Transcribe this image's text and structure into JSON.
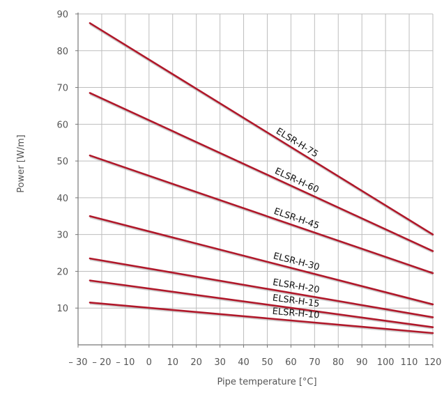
{
  "chart_data": {
    "type": "line",
    "title": "",
    "xlabel": "Pipe temperature [°C]",
    "ylabel": "Power [W/m]",
    "xlim": [
      -30,
      120
    ],
    "ylim": [
      0,
      90
    ],
    "x_ticks": [
      -30,
      -20,
      -10,
      0,
      10,
      20,
      30,
      40,
      50,
      60,
      70,
      80,
      90,
      100,
      110,
      120
    ],
    "x_tick_labels": [
      "– 30",
      "– 20",
      "– 10",
      "0",
      "10",
      "20",
      "30",
      "40",
      "50",
      "60",
      "70",
      "80",
      "90",
      "100",
      "110",
      "120"
    ],
    "y_ticks": [
      10,
      20,
      30,
      40,
      50,
      60,
      70,
      80,
      90
    ],
    "y_tick_labels": [
      "10",
      "20",
      "30",
      "40",
      "50",
      "60",
      "70",
      "80",
      "90"
    ],
    "grid": true,
    "colors": {
      "series": "#b0182a",
      "grid": "#bdbdbd",
      "axis": "#777777"
    },
    "series": [
      {
        "name": "ELSR-H-75",
        "x": [
          -25,
          120
        ],
        "y": [
          87.5,
          30
        ]
      },
      {
        "name": "ELSR-H-60",
        "x": [
          -25,
          120
        ],
        "y": [
          68.5,
          25.5
        ]
      },
      {
        "name": "ELSR-H-45",
        "x": [
          -25,
          120
        ],
        "y": [
          51.5,
          19.5
        ]
      },
      {
        "name": "ELSR-H-30",
        "x": [
          -25,
          120
        ],
        "y": [
          35,
          11
        ]
      },
      {
        "name": "ELSR-H-20",
        "x": [
          -25,
          120
        ],
        "y": [
          23.5,
          7.5
        ]
      },
      {
        "name": "ELSR-H-15",
        "x": [
          -25,
          120
        ],
        "y": [
          17.5,
          4.8
        ]
      },
      {
        "name": "ELSR-H-10",
        "x": [
          -25,
          120
        ],
        "y": [
          11.5,
          3.2
        ]
      }
    ]
  }
}
